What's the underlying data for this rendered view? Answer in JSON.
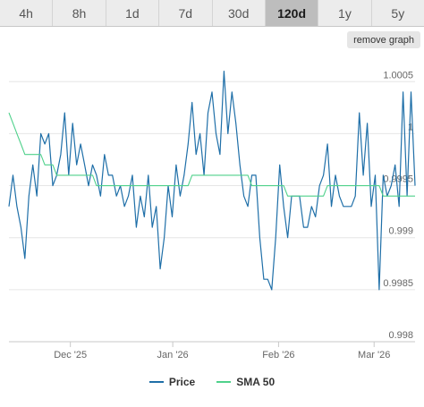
{
  "tabs": [
    {
      "label": "4h",
      "active": false
    },
    {
      "label": "8h",
      "active": false
    },
    {
      "label": "1d",
      "active": false
    },
    {
      "label": "7d",
      "active": false
    },
    {
      "label": "30d",
      "active": false
    },
    {
      "label": "120d",
      "active": true
    },
    {
      "label": "1y",
      "active": false
    },
    {
      "label": "5y",
      "active": false
    }
  ],
  "remove_graph_label": "remove graph",
  "colors": {
    "price": "#1f6fa8",
    "sma": "#4fd18b",
    "grid": "#e6e6e6",
    "axis": "#c8c8c8",
    "text": "#666666"
  },
  "chart_data": {
    "type": "line",
    "xlabel": "",
    "ylabel": "",
    "ylim": [
      0.998,
      1.0007
    ],
    "y_ticks": [
      0.998,
      0.9985,
      0.999,
      0.9995,
      1,
      1.0005
    ],
    "y_tick_labels": [
      "0.998",
      "0.9985",
      "0.999",
      "0.9995",
      "1",
      "1.0005"
    ],
    "x_range": [
      0,
      119
    ],
    "x_ticks": [
      {
        "pos": 18,
        "label": "Dec '25"
      },
      {
        "pos": 48,
        "label": "Jan '26"
      },
      {
        "pos": 79,
        "label": "Feb '26"
      },
      {
        "pos": 107,
        "label": "Mar '26"
      }
    ],
    "grid": true,
    "legend": "bottom",
    "series": [
      {
        "name": "Price",
        "values": [
          0.9993,
          0.9996,
          0.9993,
          0.9991,
          0.9988,
          0.9994,
          0.9997,
          0.9994,
          1.0,
          0.9999,
          1.0,
          0.9995,
          0.9996,
          0.9998,
          1.0002,
          0.9996,
          1.0001,
          0.9997,
          0.9999,
          0.9997,
          0.9995,
          0.9997,
          0.9996,
          0.9994,
          0.9998,
          0.9996,
          0.9996,
          0.9994,
          0.9995,
          0.9993,
          0.9994,
          0.9996,
          0.9991,
          0.9994,
          0.9992,
          0.9996,
          0.9991,
          0.9993,
          0.9987,
          0.999,
          0.9995,
          0.9992,
          0.9997,
          0.9994,
          0.9996,
          0.9999,
          1.0003,
          0.9998,
          1.0,
          0.9996,
          1.0002,
          1.0004,
          1.0,
          0.9998,
          1.0006,
          1.0,
          1.0004,
          1.0001,
          0.9997,
          0.9994,
          0.9993,
          0.9996,
          0.9996,
          0.999,
          0.9986,
          0.9986,
          0.9985,
          0.999,
          0.9997,
          0.9993,
          0.999,
          0.9994,
          0.9994,
          0.9994,
          0.9991,
          0.9991,
          0.9993,
          0.9992,
          0.9995,
          0.9996,
          0.9999,
          0.9993,
          0.9996,
          0.9994,
          0.9993,
          0.9993,
          0.9993,
          0.9994,
          1.0002,
          0.9996,
          1.0001,
          0.9993,
          0.9996,
          0.9985,
          0.9996,
          0.9994,
          0.9995,
          0.9997,
          0.9993,
          1.0004,
          0.9994,
          1.0004,
          0.9995
        ],
        "values_note_ignore": null
      },
      {
        "name": "SMA 50",
        "values": [
          1.0002,
          1.0001,
          1.0,
          0.9999,
          0.9998,
          0.9998,
          0.9998,
          0.9998,
          0.9998,
          0.9997,
          0.9997,
          0.9997,
          0.9996,
          0.9996,
          0.9996,
          0.9996,
          0.9996,
          0.9996,
          0.9996,
          0.9996,
          0.9996,
          0.9996,
          0.9995,
          0.9995,
          0.9995,
          0.9995,
          0.9995,
          0.9995,
          0.9995,
          0.9995,
          0.9995,
          0.9995,
          0.9995,
          0.9995,
          0.9995,
          0.9995,
          0.9995,
          0.9995,
          0.9995,
          0.9995,
          0.9995,
          0.9995,
          0.9995,
          0.9995,
          0.9995,
          0.9995,
          0.9996,
          0.9996,
          0.9996,
          0.9996,
          0.9996,
          0.9996,
          0.9996,
          0.9996,
          0.9996,
          0.9996,
          0.9996,
          0.9996,
          0.9996,
          0.9996,
          0.9996,
          0.9995,
          0.9995,
          0.9995,
          0.9995,
          0.9995,
          0.9995,
          0.9995,
          0.9995,
          0.9995,
          0.9994,
          0.9994,
          0.9994,
          0.9994,
          0.9994,
          0.9994,
          0.9994,
          0.9994,
          0.9994,
          0.9994,
          0.9995,
          0.9995,
          0.9995,
          0.9995,
          0.9995,
          0.9995,
          0.9995,
          0.9995,
          0.9995,
          0.9995,
          0.9995,
          0.9995,
          0.9995,
          0.9995,
          0.9994,
          0.9994,
          0.9994,
          0.9994,
          0.9994,
          0.9994,
          0.9994,
          0.9994,
          0.9994
        ]
      }
    ]
  }
}
